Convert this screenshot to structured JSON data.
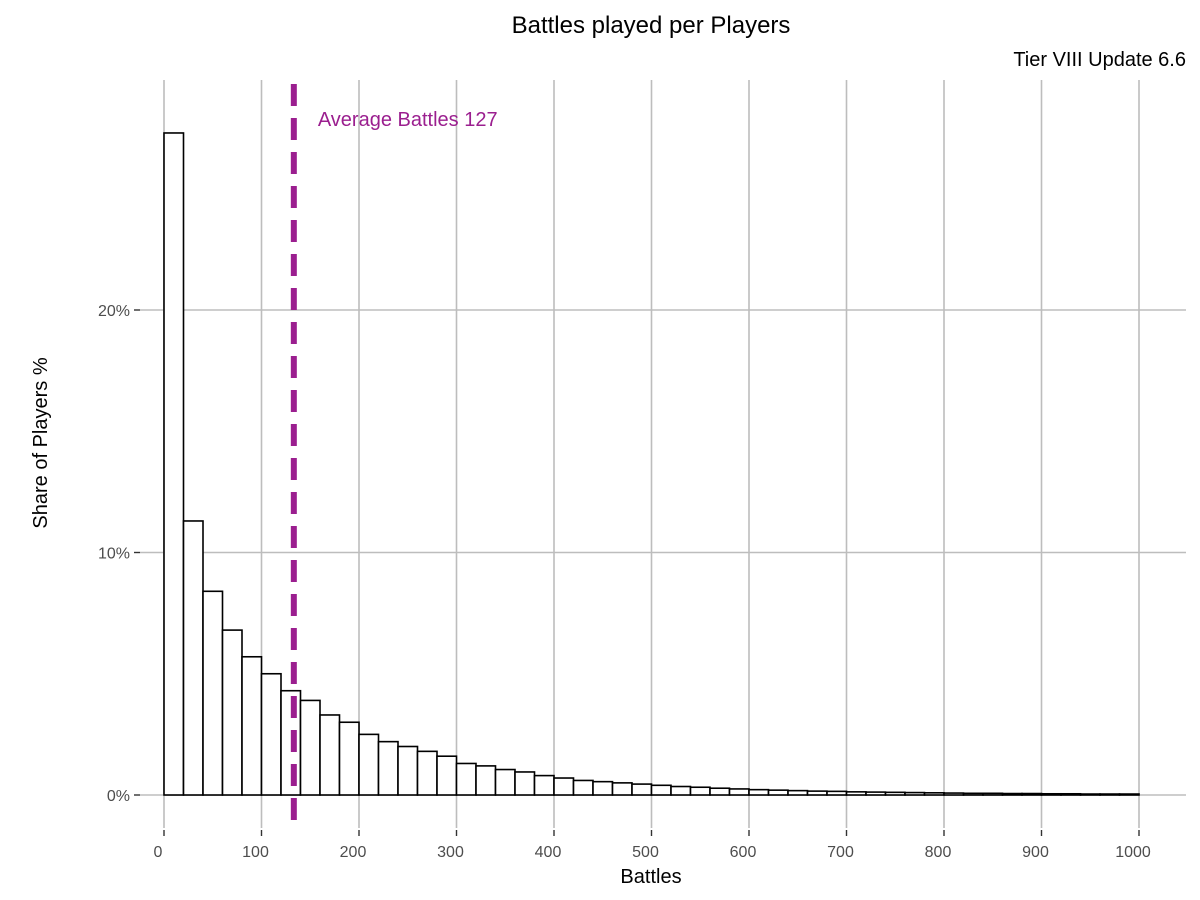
{
  "chart_data": {
    "type": "bar",
    "title": "Battles played per Players",
    "subtitle": "Tier VIII Update 6.6",
    "xlabel": "Battles",
    "ylabel": "Share of Players %",
    "xlim": [
      0,
      1000
    ],
    "ylim": [
      0,
      28
    ],
    "x_ticks": [
      0,
      100,
      200,
      300,
      400,
      500,
      600,
      700,
      800,
      900,
      1000
    ],
    "y_ticks": [
      {
        "value": 0,
        "label": "0%"
      },
      {
        "value": 10,
        "label": "10%"
      },
      {
        "value": 20,
        "label": "20%"
      }
    ],
    "bin_width": 20,
    "bins_start": [
      0,
      20,
      40,
      60,
      80,
      100,
      120,
      140,
      160,
      180,
      200,
      220,
      240,
      260,
      280,
      300,
      320,
      340,
      360,
      380,
      400,
      420,
      440,
      460,
      480,
      500,
      520,
      540,
      560,
      580,
      600,
      620,
      640,
      660,
      680,
      700,
      720,
      740,
      760,
      780,
      800,
      820,
      840,
      860,
      880,
      900,
      920,
      940,
      960,
      980
    ],
    "values": [
      27.3,
      11.3,
      8.4,
      6.8,
      5.7,
      5.0,
      4.3,
      3.9,
      3.3,
      3.0,
      2.5,
      2.2,
      2.0,
      1.8,
      1.6,
      1.3,
      1.2,
      1.05,
      0.95,
      0.8,
      0.7,
      0.6,
      0.55,
      0.5,
      0.45,
      0.4,
      0.35,
      0.32,
      0.28,
      0.25,
      0.22,
      0.2,
      0.18,
      0.16,
      0.15,
      0.13,
      0.12,
      0.11,
      0.1,
      0.09,
      0.08,
      0.07,
      0.07,
      0.06,
      0.06,
      0.05,
      0.05,
      0.04,
      0.04,
      0.04
    ],
    "grid": true,
    "average_line": {
      "value": 127,
      "label": "Average Battles 127",
      "color": "#9b1f8f"
    }
  }
}
